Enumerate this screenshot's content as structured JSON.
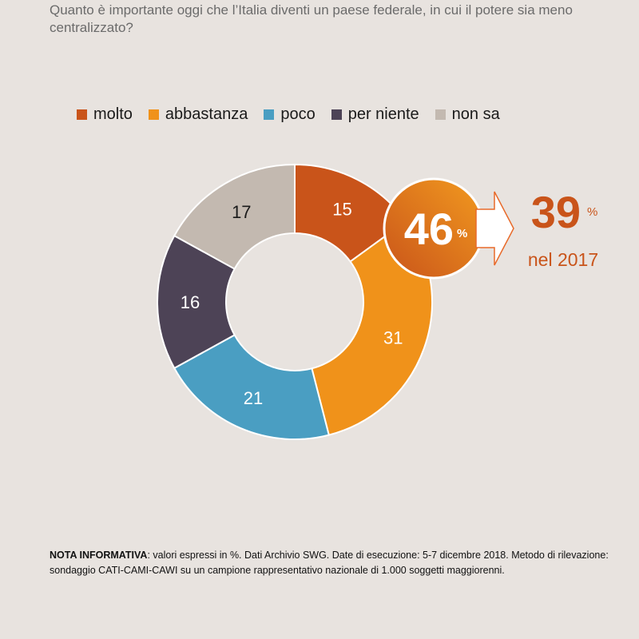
{
  "question": "Quanto è importante oggi che l’Italia diventi un paese federale, in cui il potere sia meno centralizzato?",
  "chart_data": {
    "type": "pie",
    "categories": [
      "molto",
      "abbastanza",
      "poco",
      "per niente",
      "non sa"
    ],
    "values": [
      15,
      31,
      21,
      16,
      17
    ],
    "colors": [
      "#c9541a",
      "#f0921a",
      "#4a9ec2",
      "#4d4356",
      "#c3b9b0"
    ],
    "legend_position": "top",
    "title": "",
    "highlight": {
      "value": "46",
      "unit": "%"
    },
    "comparison": {
      "value": "39",
      "unit": "%",
      "label": "nel 2017"
    }
  },
  "note": {
    "label": "NOTA INFORMATIVA",
    "text": ": valori espressi in %. Dati Archivio SWG. Date di esecuzione: 5-7 dicembre 2018. Metodo di rilevazione: sondaggio CATI-CAMI-CAWI su un campione rappresentativo nazionale di 1.000 soggetti maggiorenni."
  }
}
